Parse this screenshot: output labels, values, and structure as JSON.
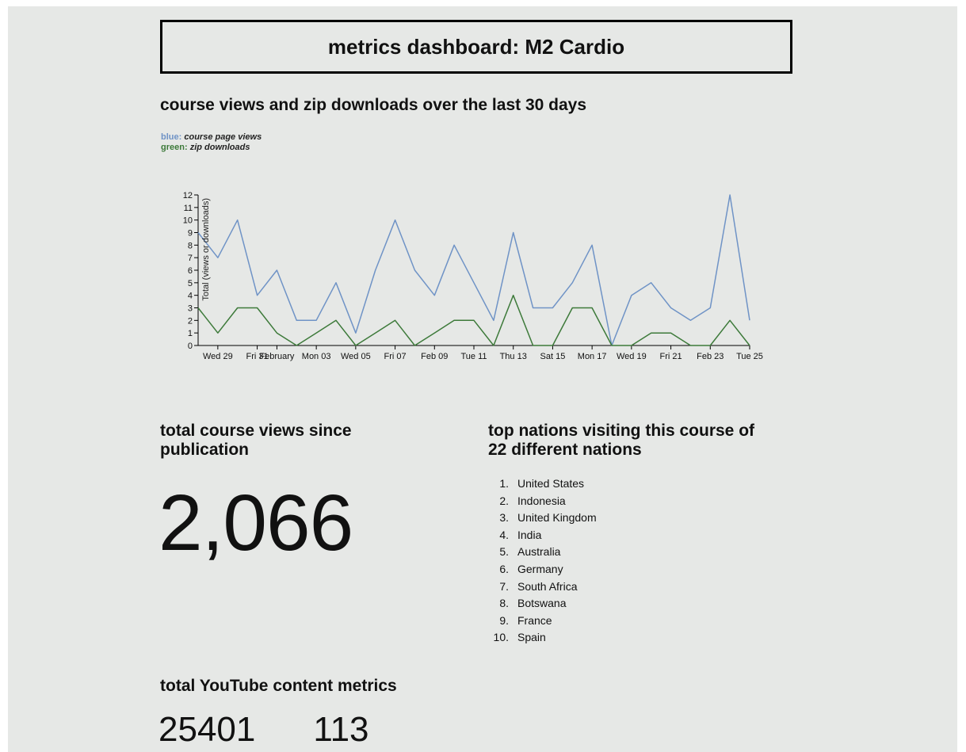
{
  "page": {
    "title": "metrics dashboard: M2 Cardio"
  },
  "chart_section": {
    "heading": "course views and zip downloads over the last 30 days",
    "legend": [
      {
        "key": "blue",
        "label": "course page views",
        "color": "#6f93c6"
      },
      {
        "key": "green",
        "label": "zip downloads",
        "color": "#3d7a3a"
      }
    ]
  },
  "chart_data": {
    "type": "line",
    "title": "",
    "xlabel": "",
    "ylabel": "Total (views or downloads)",
    "ylim": [
      0,
      12
    ],
    "yticks": [
      0,
      1,
      2,
      3,
      4,
      5,
      6,
      7,
      8,
      9,
      10,
      11,
      12
    ],
    "x": [
      "Jan 28",
      "Jan 29",
      "Jan 30",
      "Jan 31",
      "Feb 01",
      "Feb 02",
      "Feb 03",
      "Feb 04",
      "Feb 05",
      "Feb 06",
      "Feb 07",
      "Feb 08",
      "Feb 09",
      "Feb 10",
      "Feb 11",
      "Feb 12",
      "Feb 13",
      "Feb 14",
      "Feb 15",
      "Feb 16",
      "Feb 17",
      "Feb 18",
      "Feb 19",
      "Feb 20",
      "Feb 21",
      "Feb 22",
      "Feb 23",
      "Feb 24",
      "Feb 25"
    ],
    "tick_labels": [
      {
        "x": "Jan 29",
        "label": "Wed 29"
      },
      {
        "x": "Jan 31",
        "label": "Fri 31"
      },
      {
        "x": "Feb 01",
        "label": "February"
      },
      {
        "x": "Feb 03",
        "label": "Mon 03"
      },
      {
        "x": "Feb 05",
        "label": "Wed 05"
      },
      {
        "x": "Feb 07",
        "label": "Fri 07"
      },
      {
        "x": "Feb 09",
        "label": "Feb 09"
      },
      {
        "x": "Feb 11",
        "label": "Tue 11"
      },
      {
        "x": "Feb 13",
        "label": "Thu 13"
      },
      {
        "x": "Feb 15",
        "label": "Sat 15"
      },
      {
        "x": "Feb 17",
        "label": "Mon 17"
      },
      {
        "x": "Feb 19",
        "label": "Wed 19"
      },
      {
        "x": "Feb 21",
        "label": "Fri 21"
      },
      {
        "x": "Feb 23",
        "label": "Feb 23"
      },
      {
        "x": "Feb 25",
        "label": "Tue 25"
      }
    ],
    "series": [
      {
        "name": "course page views",
        "color": "#6f93c6",
        "values": [
          9,
          7,
          10,
          4,
          6,
          2,
          2,
          5,
          1,
          6,
          10,
          6,
          4,
          8,
          5,
          2,
          9,
          3,
          3,
          5,
          8,
          0,
          4,
          5,
          3,
          2,
          3,
          12,
          2
        ]
      },
      {
        "name": "zip downloads",
        "color": "#3d7a3a",
        "values": [
          3,
          1,
          3,
          3,
          1,
          0,
          1,
          2,
          0,
          1,
          2,
          0,
          1,
          2,
          2,
          0,
          4,
          0,
          0,
          3,
          3,
          0,
          0,
          1,
          1,
          0,
          0,
          2,
          0
        ]
      }
    ]
  },
  "views_section": {
    "heading_line1": "total course views since",
    "heading_line2": "publication",
    "total_views": "2,066"
  },
  "nations_section": {
    "heading_line1": "top nations visiting this course of",
    "heading_line2": "22 different nations",
    "nations": [
      {
        "num": "1.",
        "name": "United States"
      },
      {
        "num": "2.",
        "name": "Indonesia"
      },
      {
        "num": "3.",
        "name": "United Kingdom"
      },
      {
        "num": "4.",
        "name": "India"
      },
      {
        "num": "5.",
        "name": "Australia"
      },
      {
        "num": "6.",
        "name": "Germany"
      },
      {
        "num": "7.",
        "name": "South Africa"
      },
      {
        "num": "8.",
        "name": "Botswana"
      },
      {
        "num": "9.",
        "name": "France"
      },
      {
        "num": "10.",
        "name": "Spain"
      }
    ]
  },
  "youtube_section": {
    "heading": "total YouTube content metrics",
    "metric_1": "25401",
    "metric_2": "113"
  }
}
